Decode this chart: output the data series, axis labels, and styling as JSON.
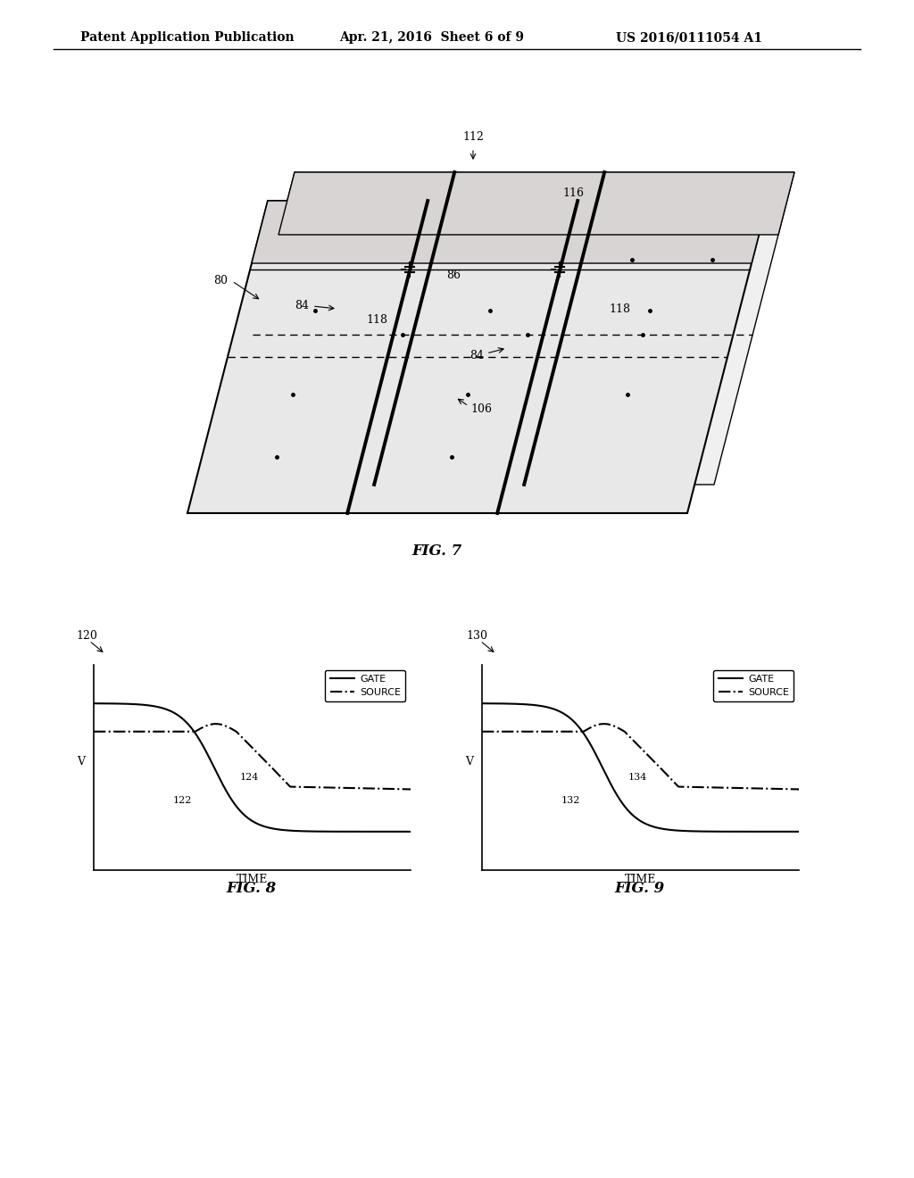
{
  "header_left": "Patent Application Publication",
  "header_mid": "Apr. 21, 2016  Sheet 6 of 9",
  "header_right": "US 2016/0111054 A1",
  "fig7_label": "FIG. 7",
  "fig8_label": "FIG. 8",
  "fig9_label": "FIG. 9",
  "label_80": "80",
  "label_112": "112",
  "label_116": "116",
  "label_84a": "84",
  "label_84b": "84",
  "label_86": "86",
  "label_106": "106",
  "label_118a": "118",
  "label_118b": "118",
  "label_120": "120",
  "label_130": "130",
  "label_122": "122",
  "label_124": "124",
  "label_132": "132",
  "label_134": "134",
  "legend_gate": "GATE",
  "legend_source": "SOURCE",
  "ylabel": "V",
  "xlabel": "TIME",
  "background": "#ffffff",
  "line_color": "#000000"
}
